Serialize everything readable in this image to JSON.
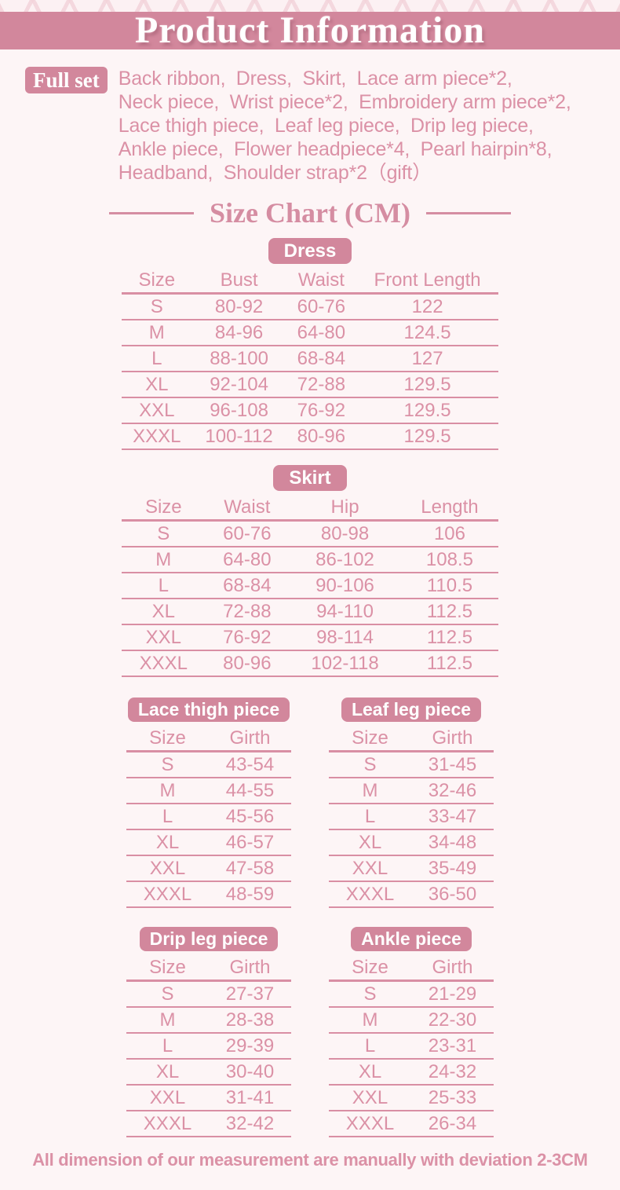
{
  "header": {
    "title": "Product Information"
  },
  "full_set": {
    "label": "Full set",
    "lines": [
      "Back ribbon,  Dress,  Skirt,  Lace arm piece*2,",
      "Neck piece,  Wrist piece*2,  Embroidery arm piece*2,",
      "Lace thigh piece,  Leaf leg piece,  Drip leg piece,",
      "Ankle piece,  Flower headpiece*4,  Pearl hairpin*8,",
      "Headband,  Shoulder strap*2（gift）"
    ]
  },
  "size_chart": {
    "title": "Size Chart (CM)"
  },
  "tables": {
    "dress": {
      "label": "Dress",
      "headers": [
        "Size",
        "Bust",
        "Waist",
        "Front Length"
      ],
      "rows": [
        [
          "S",
          "80-92",
          "60-76",
          "122"
        ],
        [
          "M",
          "84-96",
          "64-80",
          "124.5"
        ],
        [
          "L",
          "88-100",
          "68-84",
          "127"
        ],
        [
          "XL",
          "92-104",
          "72-88",
          "129.5"
        ],
        [
          "XXL",
          "96-108",
          "76-92",
          "129.5"
        ],
        [
          "XXXL",
          "100-112",
          "80-96",
          "129.5"
        ]
      ]
    },
    "skirt": {
      "label": "Skirt",
      "headers": [
        "Size",
        "Waist",
        "Hip",
        "Length"
      ],
      "rows": [
        [
          "S",
          "60-76",
          "80-98",
          "106"
        ],
        [
          "M",
          "64-80",
          "86-102",
          "108.5"
        ],
        [
          "L",
          "68-84",
          "90-106",
          "110.5"
        ],
        [
          "XL",
          "72-88",
          "94-110",
          "112.5"
        ],
        [
          "XXL",
          "76-92",
          "98-114",
          "112.5"
        ],
        [
          "XXXL",
          "80-96",
          "102-118",
          "112.5"
        ]
      ]
    },
    "lace_thigh": {
      "label": "Lace thigh piece",
      "headers": [
        "Size",
        "Girth"
      ],
      "rows": [
        [
          "S",
          "43-54"
        ],
        [
          "M",
          "44-55"
        ],
        [
          "L",
          "45-56"
        ],
        [
          "XL",
          "46-57"
        ],
        [
          "XXL",
          "47-58"
        ],
        [
          "XXXL",
          "48-59"
        ]
      ]
    },
    "leaf_leg": {
      "label": "Leaf leg piece",
      "headers": [
        "Size",
        "Girth"
      ],
      "rows": [
        [
          "S",
          "31-45"
        ],
        [
          "M",
          "32-46"
        ],
        [
          "L",
          "33-47"
        ],
        [
          "XL",
          "34-48"
        ],
        [
          "XXL",
          "35-49"
        ],
        [
          "XXXL",
          "36-50"
        ]
      ]
    },
    "drip_leg": {
      "label": "Drip leg piece",
      "headers": [
        "Size",
        "Girth"
      ],
      "rows": [
        [
          "S",
          "27-37"
        ],
        [
          "M",
          "28-38"
        ],
        [
          "L",
          "29-39"
        ],
        [
          "XL",
          "30-40"
        ],
        [
          "XXL",
          "31-41"
        ],
        [
          "XXXL",
          "32-42"
        ]
      ]
    },
    "ankle": {
      "label": "Ankle piece",
      "headers": [
        "Size",
        "Girth"
      ],
      "rows": [
        [
          "S",
          "21-29"
        ],
        [
          "M",
          "22-30"
        ],
        [
          "L",
          "23-31"
        ],
        [
          "XL",
          "24-32"
        ],
        [
          "XXL",
          "25-33"
        ],
        [
          "XXXL",
          "26-34"
        ]
      ]
    }
  },
  "footer": {
    "note": "All dimension of our measurement are manually with deviation 2-3CM"
  },
  "colors": {
    "accent": "#d2879c",
    "text": "#db91a6",
    "line": "#d98fa4",
    "background": "#fdf5f6",
    "pattern": "#f3d3da"
  }
}
